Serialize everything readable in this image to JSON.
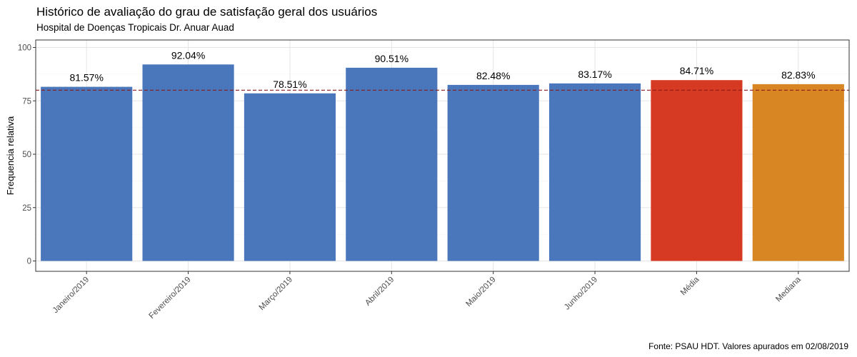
{
  "chart_data": {
    "type": "bar",
    "title": "Histórico de avaliação do grau de satisfação geral dos usuários",
    "subtitle": "Hospital de Doenças Tropicais Dr. Anuar Auad",
    "caption": "Fonte: PSAU HDT. Valores apurados em 02/08/2019",
    "xlabel": "",
    "ylabel": "Frequencia relativa",
    "ylim": [
      0,
      100
    ],
    "yticks": [
      0,
      25,
      50,
      75,
      100
    ],
    "grid": true,
    "legend": "none",
    "reference_line": {
      "value": 80,
      "style": "dashed",
      "color": "#8b1a1a"
    },
    "categories": [
      "Janeiro/2019",
      "Fevereiro/2019",
      "Março/2019",
      "Abril/2019",
      "Maio/2019",
      "Junho/2019",
      "Média",
      "Mediana"
    ],
    "values": [
      81.57,
      92.04,
      78.51,
      90.51,
      82.48,
      83.17,
      84.71,
      82.83
    ],
    "value_labels": [
      "81.57%",
      "92.04%",
      "78.51%",
      "90.51%",
      "82.48%",
      "83.17%",
      "84.71%",
      "82.83%"
    ],
    "colors": [
      "#4a76bb",
      "#4a76bb",
      "#4a76bb",
      "#4a76bb",
      "#4a76bb",
      "#4a76bb",
      "#d63a23",
      "#d88624"
    ]
  }
}
